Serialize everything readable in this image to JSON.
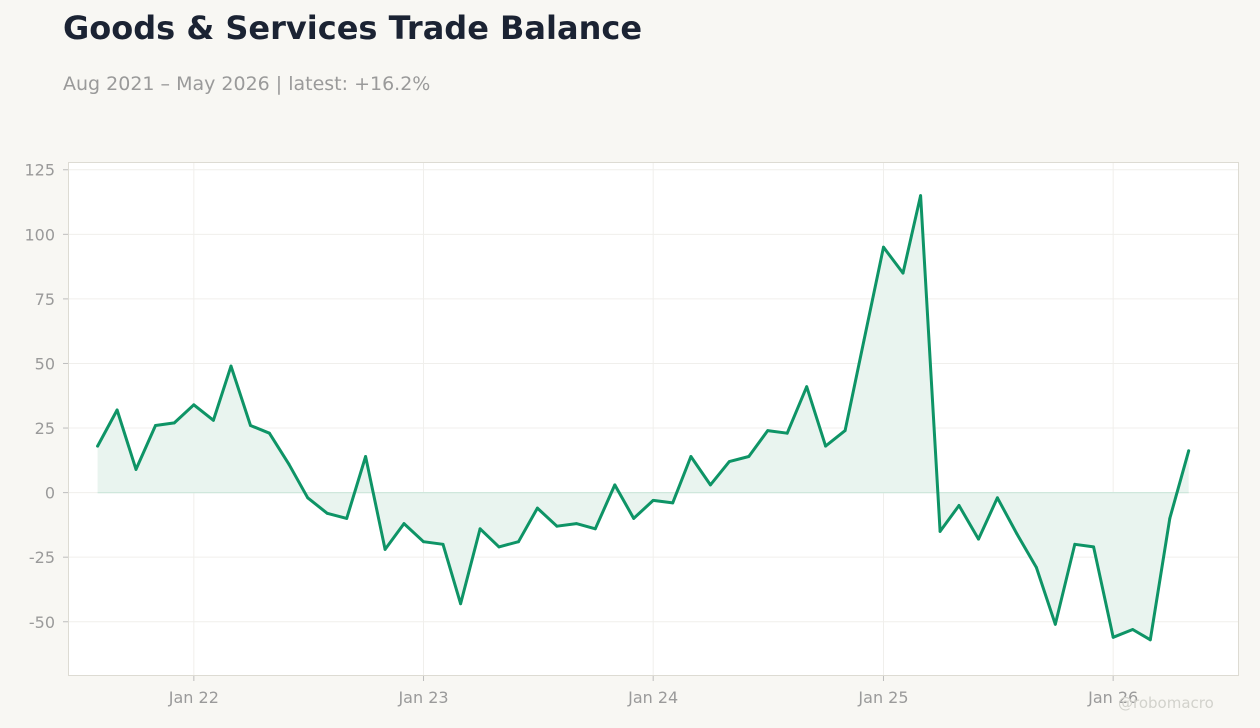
{
  "header": {
    "title": "Goods & Services Trade Balance",
    "subtitle": "Aug 2021 – May 2026 | latest: +16.2%"
  },
  "watermark": "@robomacro",
  "colors": {
    "background": "#f8f7f3",
    "plot_background": "#ffffff",
    "line": "#0e9466",
    "fill": "#e9f4ef",
    "text": "#9a9a9a",
    "title": "#1b2333"
  },
  "chart_data": {
    "type": "area",
    "title": "Goods & Services Trade Balance",
    "subtitle": "Aug 2021 – May 2026 | latest: +16.2%",
    "xlabel": "",
    "ylabel": "",
    "ylim": [
      -71,
      128
    ],
    "xlim": [
      "2021-06-15",
      "2026-07-20"
    ],
    "grid": true,
    "legend": "none",
    "y_ticks": [
      125,
      100,
      75,
      50,
      25,
      0,
      -25,
      -50
    ],
    "x_ticks": [
      {
        "date": "2022-01-01",
        "label": "Jan 22"
      },
      {
        "date": "2023-01-01",
        "label": "Jan 23"
      },
      {
        "date": "2024-01-01",
        "label": "Jan 24"
      },
      {
        "date": "2025-01-01",
        "label": "Jan 25"
      },
      {
        "date": "2026-01-01",
        "label": "Jan 26"
      }
    ],
    "series": [
      {
        "points": [
          [
            "2021-08-01",
            18
          ],
          [
            "2021-09-01",
            32
          ],
          [
            "2021-10-01",
            9
          ],
          [
            "2021-11-01",
            26
          ],
          [
            "2021-12-01",
            27
          ],
          [
            "2022-01-01",
            34
          ],
          [
            "2022-02-01",
            28
          ],
          [
            "2022-03-01",
            49
          ],
          [
            "2022-04-01",
            26
          ],
          [
            "2022-05-01",
            23
          ],
          [
            "2022-06-01",
            11
          ],
          [
            "2022-07-01",
            -2
          ],
          [
            "2022-08-01",
            -8
          ],
          [
            "2022-09-01",
            -10
          ],
          [
            "2022-10-01",
            14
          ],
          [
            "2022-11-01",
            -22
          ],
          [
            "2022-12-01",
            -12
          ],
          [
            "2023-01-01",
            -19
          ],
          [
            "2023-02-01",
            -20
          ],
          [
            "2023-03-01",
            -43
          ],
          [
            "2023-04-01",
            -14
          ],
          [
            "2023-05-01",
            -21
          ],
          [
            "2023-06-01",
            -19
          ],
          [
            "2023-07-01",
            -6
          ],
          [
            "2023-08-01",
            -13
          ],
          [
            "2023-09-01",
            -12
          ],
          [
            "2023-10-01",
            -14
          ],
          [
            "2023-11-01",
            3
          ],
          [
            "2023-12-01",
            -10
          ],
          [
            "2024-01-01",
            -3
          ],
          [
            "2024-02-01",
            -4
          ],
          [
            "2024-03-01",
            14
          ],
          [
            "2024-04-01",
            3
          ],
          [
            "2024-05-01",
            12
          ],
          [
            "2024-06-01",
            14
          ],
          [
            "2024-07-01",
            24
          ],
          [
            "2024-08-01",
            23
          ],
          [
            "2024-09-01",
            41
          ],
          [
            "2024-10-01",
            18
          ],
          [
            "2024-11-01",
            24
          ],
          [
            "2024-12-01",
            59
          ],
          [
            "2025-01-01",
            95
          ],
          [
            "2025-02-01",
            85
          ],
          [
            "2025-03-01",
            115
          ],
          [
            "2025-04-01",
            -15
          ],
          [
            "2025-05-01",
            -5
          ],
          [
            "2025-06-01",
            -18
          ],
          [
            "2025-07-01",
            -2
          ],
          [
            "2025-08-01",
            -16
          ],
          [
            "2025-09-01",
            -29
          ],
          [
            "2025-10-01",
            -51
          ],
          [
            "2025-11-01",
            -20
          ],
          [
            "2025-12-01",
            -21
          ],
          [
            "2026-01-01",
            -56
          ],
          [
            "2026-02-01",
            -53
          ],
          [
            "2026-03-01",
            -57
          ],
          [
            "2026-04-01",
            -10
          ],
          [
            "2026-05-01",
            16.2
          ]
        ]
      }
    ]
  }
}
